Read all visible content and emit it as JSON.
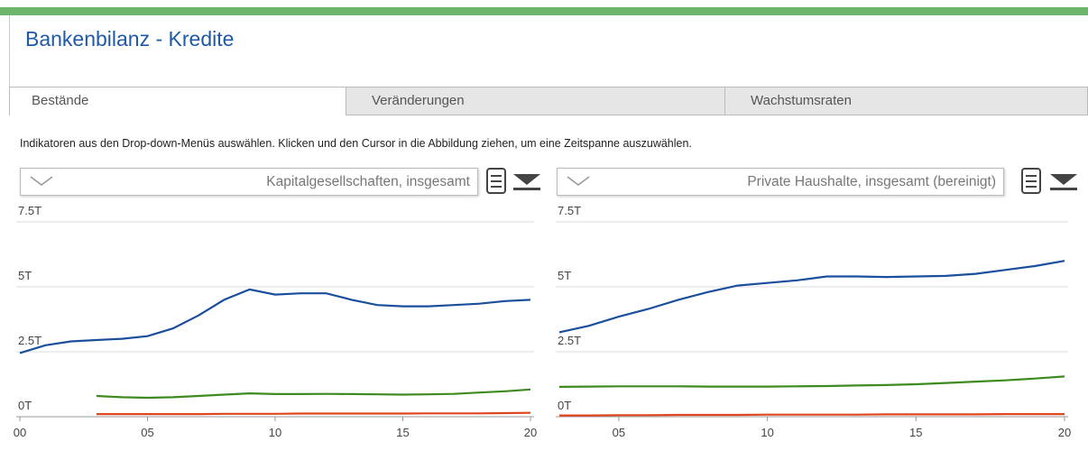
{
  "header": {
    "title": "Bankenbilanz - Kredite"
  },
  "tabs": [
    "Bestände",
    "Veränderungen",
    "Wachstumsraten"
  ],
  "instruction": "Indikatoren aus den Drop-down-Menüs auswählen. Klicken und den Cursor in die Abbildung ziehen, um eine Zeitspanne auszuwählen.",
  "dropdowns": [
    "Kapitalgesellschaften, insgesamt",
    "Private Haushalte, insgesamt (bereinigt)"
  ],
  "chart_data": [
    {
      "type": "line",
      "x": [
        2000,
        2001,
        2002,
        2003,
        2004,
        2005,
        2006,
        2007,
        2008,
        2009,
        2010,
        2011,
        2012,
        2013,
        2014,
        2015,
        2016,
        2017,
        2018,
        2019,
        2020
      ],
      "xlim": [
        2000,
        2020
      ],
      "xticks": [
        {
          "value": 2000,
          "label": "00"
        },
        {
          "value": 2005,
          "label": "05"
        },
        {
          "value": 2010,
          "label": "10"
        },
        {
          "value": 2015,
          "label": "15"
        },
        {
          "value": 2020,
          "label": "20"
        }
      ],
      "ylim": [
        0,
        7.5
      ],
      "yticks": [
        {
          "value": 0,
          "label": "0T"
        },
        {
          "value": 2.5,
          "label": "2.5T"
        },
        {
          "value": 5,
          "label": "5T"
        },
        {
          "value": 7.5,
          "label": "7.5T"
        }
      ],
      "grid": true,
      "series": [
        {
          "color": "#1a4f9c",
          "values": [
            2.45,
            2.75,
            2.9,
            2.95,
            3.0,
            3.1,
            3.4,
            3.9,
            4.5,
            4.9,
            4.7,
            4.75,
            4.75,
            4.5,
            4.3,
            4.25,
            4.25,
            4.3,
            4.35,
            4.45,
            4.5
          ]
        },
        {
          "color": "#3d8a1f",
          "values": [
            null,
            null,
            null,
            0.8,
            0.75,
            0.73,
            0.75,
            0.8,
            0.85,
            0.9,
            0.87,
            0.87,
            0.88,
            0.87,
            0.86,
            0.85,
            0.86,
            0.88,
            0.93,
            0.98,
            1.05
          ]
        },
        {
          "color": "#e0461e",
          "values": [
            null,
            null,
            null,
            0.1,
            0.1,
            0.1,
            0.1,
            0.1,
            0.11,
            0.11,
            0.11,
            0.12,
            0.12,
            0.12,
            0.12,
            0.12,
            0.13,
            0.13,
            0.13,
            0.14,
            0.15
          ]
        }
      ]
    },
    {
      "type": "line",
      "x": [
        2003,
        2004,
        2005,
        2006,
        2007,
        2008,
        2009,
        2010,
        2011,
        2012,
        2013,
        2014,
        2015,
        2016,
        2017,
        2018,
        2019,
        2020
      ],
      "xlim": [
        2003,
        2020
      ],
      "xticks": [
        {
          "value": 2005,
          "label": "05"
        },
        {
          "value": 2010,
          "label": "10"
        },
        {
          "value": 2015,
          "label": "15"
        },
        {
          "value": 2020,
          "label": "20"
        }
      ],
      "ylim": [
        0,
        7.5
      ],
      "yticks": [
        {
          "value": 0,
          "label": "0T"
        },
        {
          "value": 2.5,
          "label": "2.5T"
        },
        {
          "value": 5,
          "label": "5T"
        },
        {
          "value": 7.5,
          "label": "7.5T"
        }
      ],
      "grid": true,
      "series": [
        {
          "color": "#1a4f9c",
          "values": [
            3.25,
            3.5,
            3.85,
            4.15,
            4.5,
            4.8,
            5.05,
            5.15,
            5.25,
            5.4,
            5.4,
            5.38,
            5.4,
            5.42,
            5.5,
            5.65,
            5.8,
            6.0
          ]
        },
        {
          "color": "#3d8a1f",
          "values": [
            1.15,
            1.16,
            1.17,
            1.17,
            1.17,
            1.16,
            1.16,
            1.16,
            1.17,
            1.18,
            1.2,
            1.22,
            1.25,
            1.3,
            1.35,
            1.4,
            1.47,
            1.55
          ]
        },
        {
          "color": "#e0461e",
          "values": [
            0.05,
            0.05,
            0.06,
            0.06,
            0.07,
            0.07,
            0.07,
            0.08,
            0.08,
            0.08,
            0.08,
            0.09,
            0.09,
            0.09,
            0.09,
            0.1,
            0.1,
            0.1
          ]
        }
      ]
    }
  ]
}
